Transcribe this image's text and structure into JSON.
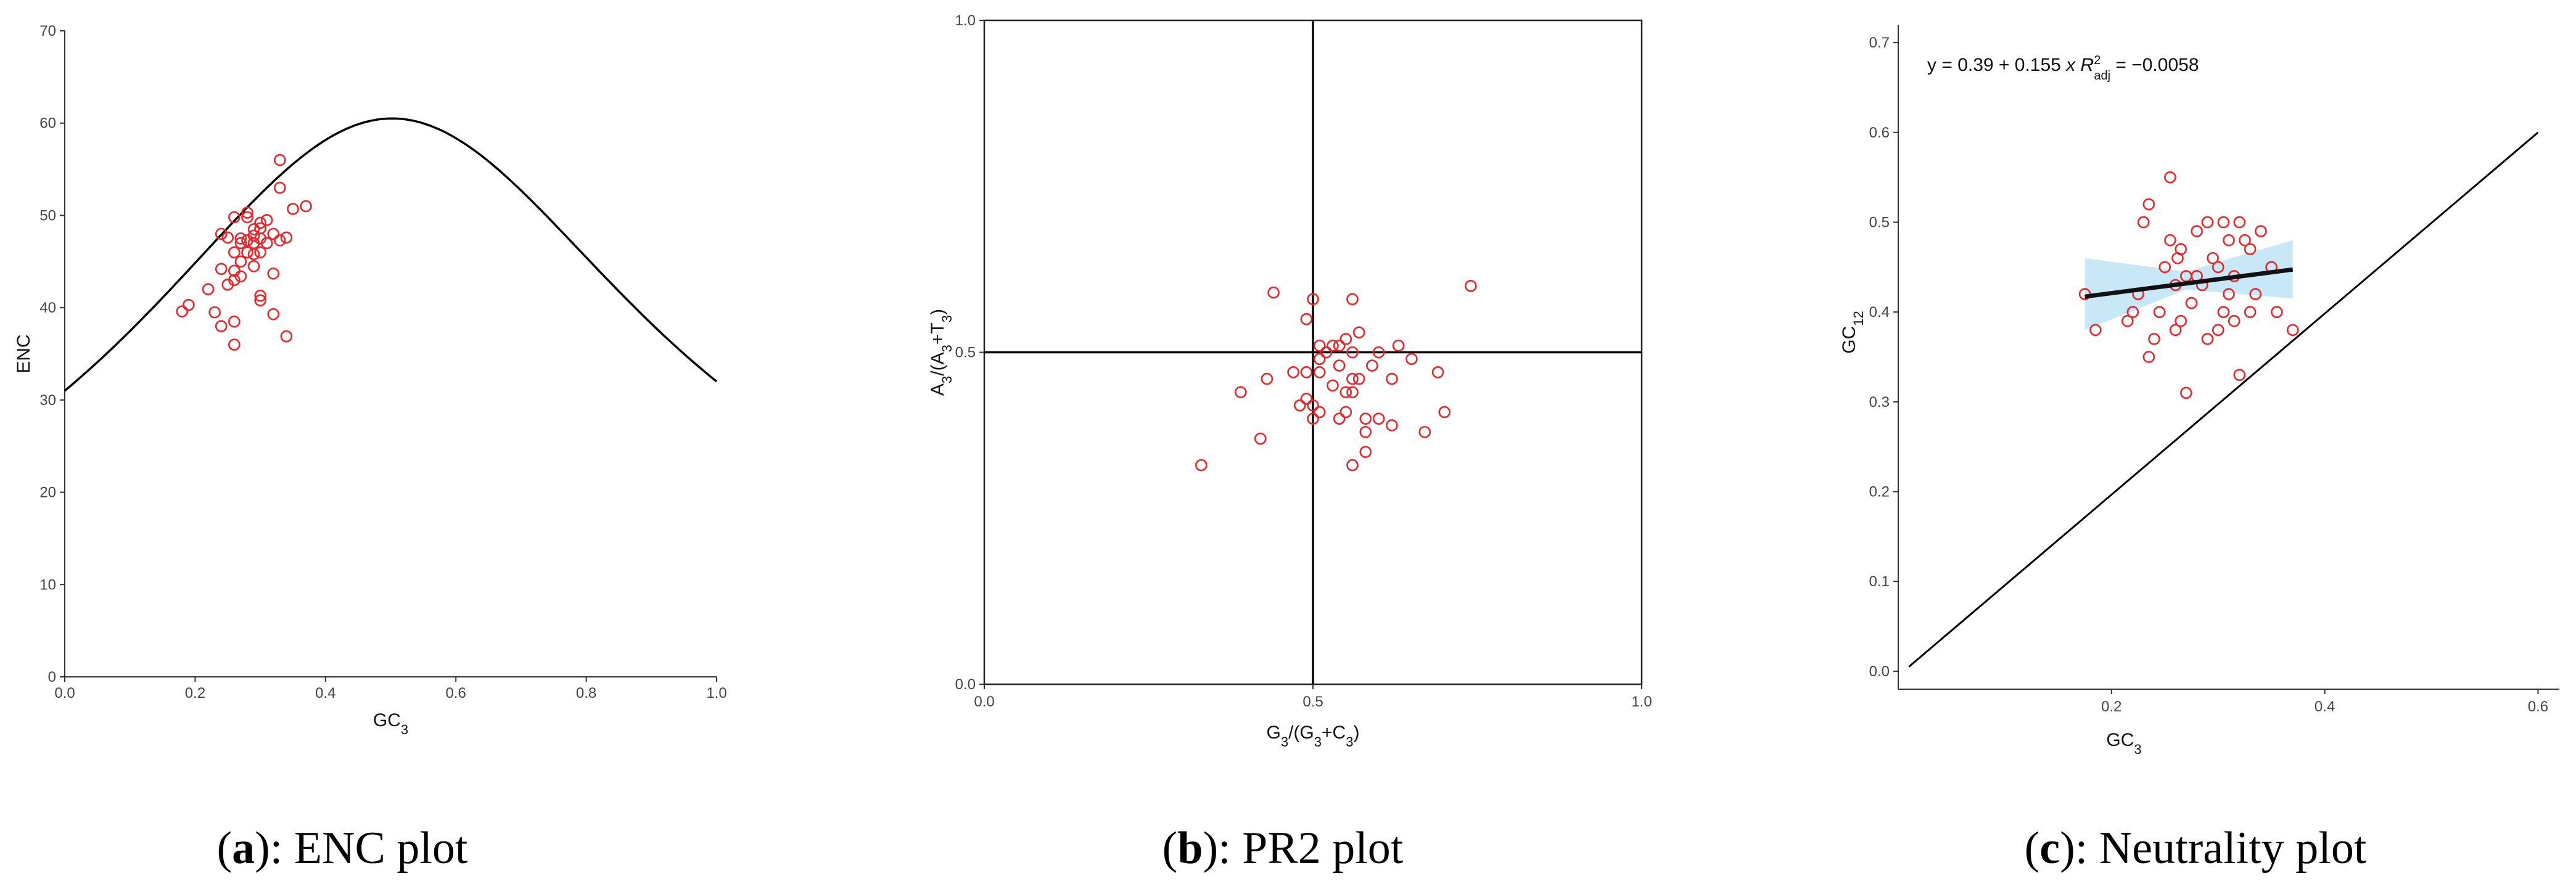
{
  "panels": [
    {
      "caption_letter": "a",
      "caption_text": "): ENC plot"
    },
    {
      "caption_letter": "b",
      "caption_text": "): PR2 plot"
    },
    {
      "caption_letter": "c",
      "caption_text": "): Neutrality plot"
    }
  ],
  "colors": {
    "points": "#e8262b",
    "curve": "#000000",
    "band": "#bfe4f6",
    "fit": "#111111"
  },
  "chart_data": [
    {
      "type": "scatter",
      "title": "",
      "xlabel": "GC3",
      "ylabel": "ENC",
      "xlim": [
        0,
        1
      ],
      "ylim": [
        0,
        70
      ],
      "xticks": [
        0.0,
        0.2,
        0.4,
        0.6,
        0.8,
        1.0
      ],
      "xtick_labels": [
        "0.0",
        "0.2",
        "0.4",
        "0.6",
        "0.8",
        "1.0"
      ],
      "yticks": [
        0,
        10,
        20,
        30,
        40,
        50,
        60,
        70
      ],
      "ytick_labels": [
        "0",
        "10",
        "20",
        "30",
        "40",
        "50",
        "60",
        "70"
      ],
      "expected_curve": "ENC = 2 + GC3 + 29/(GC3^2 + (1-GC3)^2)",
      "points": [
        [
          0.18,
          39.6
        ],
        [
          0.19,
          40.3
        ],
        [
          0.22,
          42.0
        ],
        [
          0.23,
          39.5
        ],
        [
          0.24,
          38.0
        ],
        [
          0.24,
          44.2
        ],
        [
          0.24,
          48.0
        ],
        [
          0.25,
          42.5
        ],
        [
          0.25,
          47.6
        ],
        [
          0.26,
          36.0
        ],
        [
          0.26,
          38.5
        ],
        [
          0.26,
          43.0
        ],
        [
          0.26,
          44.0
        ],
        [
          0.26,
          46.0
        ],
        [
          0.26,
          49.8
        ],
        [
          0.27,
          43.4
        ],
        [
          0.27,
          45.0
        ],
        [
          0.27,
          47.5
        ],
        [
          0.27,
          47.0
        ],
        [
          0.28,
          46.0
        ],
        [
          0.28,
          47.3
        ],
        [
          0.28,
          49.8
        ],
        [
          0.28,
          50.3
        ],
        [
          0.29,
          45.8
        ],
        [
          0.29,
          47.0
        ],
        [
          0.29,
          47.8
        ],
        [
          0.29,
          44.5
        ],
        [
          0.29,
          48.5
        ],
        [
          0.3,
          40.8
        ],
        [
          0.3,
          41.3
        ],
        [
          0.3,
          46.0
        ],
        [
          0.3,
          47.5
        ],
        [
          0.3,
          48.6
        ],
        [
          0.3,
          49.2
        ],
        [
          0.31,
          47.0
        ],
        [
          0.31,
          49.5
        ],
        [
          0.32,
          43.7
        ],
        [
          0.32,
          48.0
        ],
        [
          0.32,
          39.3
        ],
        [
          0.33,
          47.3
        ],
        [
          0.33,
          53.0
        ],
        [
          0.33,
          56.0
        ],
        [
          0.34,
          36.9
        ],
        [
          0.34,
          47.6
        ],
        [
          0.35,
          50.7
        ],
        [
          0.37,
          51.0
        ]
      ]
    },
    {
      "type": "scatter",
      "title": "",
      "xlabel": "G3/(G3+C3)",
      "ylabel": "A3/(A3+T3)",
      "xlim": [
        0,
        1
      ],
      "ylim": [
        0,
        1
      ],
      "xticks": [
        0.0,
        0.5,
        1.0
      ],
      "xtick_labels": [
        "0.0",
        "0.5",
        "1.0"
      ],
      "yticks": [
        0.0,
        0.5,
        1.0
      ],
      "ytick_labels": [
        "0.0",
        "0.5",
        "1.0"
      ],
      "reference_lines": {
        "x": 0.5,
        "y": 0.5
      },
      "points": [
        [
          0.33,
          0.33
        ],
        [
          0.39,
          0.44
        ],
        [
          0.42,
          0.37
        ],
        [
          0.43,
          0.46
        ],
        [
          0.44,
          0.59
        ],
        [
          0.47,
          0.47
        ],
        [
          0.48,
          0.42
        ],
        [
          0.49,
          0.43
        ],
        [
          0.49,
          0.47
        ],
        [
          0.49,
          0.55
        ],
        [
          0.5,
          0.4
        ],
        [
          0.5,
          0.42
        ],
        [
          0.5,
          0.58
        ],
        [
          0.51,
          0.41
        ],
        [
          0.51,
          0.47
        ],
        [
          0.51,
          0.49
        ],
        [
          0.51,
          0.51
        ],
        [
          0.52,
          0.5
        ],
        [
          0.53,
          0.45
        ],
        [
          0.53,
          0.51
        ],
        [
          0.54,
          0.4
        ],
        [
          0.54,
          0.48
        ],
        [
          0.54,
          0.51
        ],
        [
          0.55,
          0.41
        ],
        [
          0.55,
          0.44
        ],
        [
          0.55,
          0.52
        ],
        [
          0.56,
          0.33
        ],
        [
          0.56,
          0.44
        ],
        [
          0.56,
          0.46
        ],
        [
          0.56,
          0.5
        ],
        [
          0.56,
          0.58
        ],
        [
          0.57,
          0.46
        ],
        [
          0.57,
          0.53
        ],
        [
          0.58,
          0.35
        ],
        [
          0.58,
          0.38
        ],
        [
          0.58,
          0.4
        ],
        [
          0.59,
          0.48
        ],
        [
          0.6,
          0.4
        ],
        [
          0.6,
          0.5
        ],
        [
          0.62,
          0.39
        ],
        [
          0.62,
          0.46
        ],
        [
          0.63,
          0.51
        ],
        [
          0.65,
          0.49
        ],
        [
          0.67,
          0.38
        ],
        [
          0.69,
          0.47
        ],
        [
          0.7,
          0.41
        ],
        [
          0.74,
          0.6
        ]
      ]
    },
    {
      "type": "scatter",
      "title": "",
      "xlabel": "GC3",
      "ylabel": "GC12",
      "equation": {
        "prefix": "y = 0.39 + 0.155",
        "x": "x",
        "r": "R",
        "sup": "2",
        "sub": "adj",
        "value": " = −0.0058"
      },
      "xlim": [
        0,
        0.62
      ],
      "ylim": [
        -0.02,
        0.72
      ],
      "xticks": [
        0.2,
        0.4,
        0.6
      ],
      "xtick_labels": [
        "0.2",
        "0.4",
        "0.6"
      ],
      "yticks": [
        0.0,
        0.1,
        0.2,
        0.3,
        0.4,
        0.5,
        0.6,
        0.7
      ],
      "ytick_labels": [
        "0.0",
        "0.1",
        "0.2",
        "0.3",
        "0.4",
        "0.5",
        "0.6",
        "0.7"
      ],
      "fit_line": {
        "intercept": 0.39,
        "slope": 0.155,
        "x_range": [
          0.175,
          0.37
        ]
      },
      "confidence_band": {
        "x": [
          0.175,
          0.27,
          0.37
        ],
        "lower": [
          0.38,
          0.425,
          0.415
        ],
        "upper": [
          0.46,
          0.445,
          0.48
        ]
      },
      "neutrality_line": {
        "x": [
          0.01,
          0.6
        ],
        "y": [
          0.005,
          0.6
        ]
      },
      "points": [
        [
          0.175,
          0.42
        ],
        [
          0.185,
          0.38
        ],
        [
          0.215,
          0.39
        ],
        [
          0.22,
          0.4
        ],
        [
          0.225,
          0.42
        ],
        [
          0.23,
          0.5
        ],
        [
          0.235,
          0.35
        ],
        [
          0.235,
          0.52
        ],
        [
          0.24,
          0.37
        ],
        [
          0.245,
          0.4
        ],
        [
          0.25,
          0.45
        ],
        [
          0.255,
          0.55
        ],
        [
          0.255,
          0.48
        ],
        [
          0.26,
          0.38
        ],
        [
          0.26,
          0.43
        ],
        [
          0.262,
          0.46
        ],
        [
          0.265,
          0.47
        ],
        [
          0.265,
          0.39
        ],
        [
          0.27,
          0.31
        ],
        [
          0.27,
          0.44
        ],
        [
          0.275,
          0.41
        ],
        [
          0.28,
          0.44
        ],
        [
          0.28,
          0.49
        ],
        [
          0.285,
          0.43
        ],
        [
          0.29,
          0.37
        ],
        [
          0.29,
          0.5
        ],
        [
          0.295,
          0.46
        ],
        [
          0.3,
          0.38
        ],
        [
          0.3,
          0.45
        ],
        [
          0.305,
          0.4
        ],
        [
          0.305,
          0.5
        ],
        [
          0.31,
          0.42
        ],
        [
          0.31,
          0.48
        ],
        [
          0.315,
          0.39
        ],
        [
          0.315,
          0.44
        ],
        [
          0.32,
          0.5
        ],
        [
          0.32,
          0.33
        ],
        [
          0.325,
          0.48
        ],
        [
          0.33,
          0.47
        ],
        [
          0.33,
          0.4
        ],
        [
          0.335,
          0.42
        ],
        [
          0.34,
          0.49
        ],
        [
          0.35,
          0.45
        ],
        [
          0.355,
          0.4
        ],
        [
          0.37,
          0.38
        ]
      ]
    }
  ]
}
